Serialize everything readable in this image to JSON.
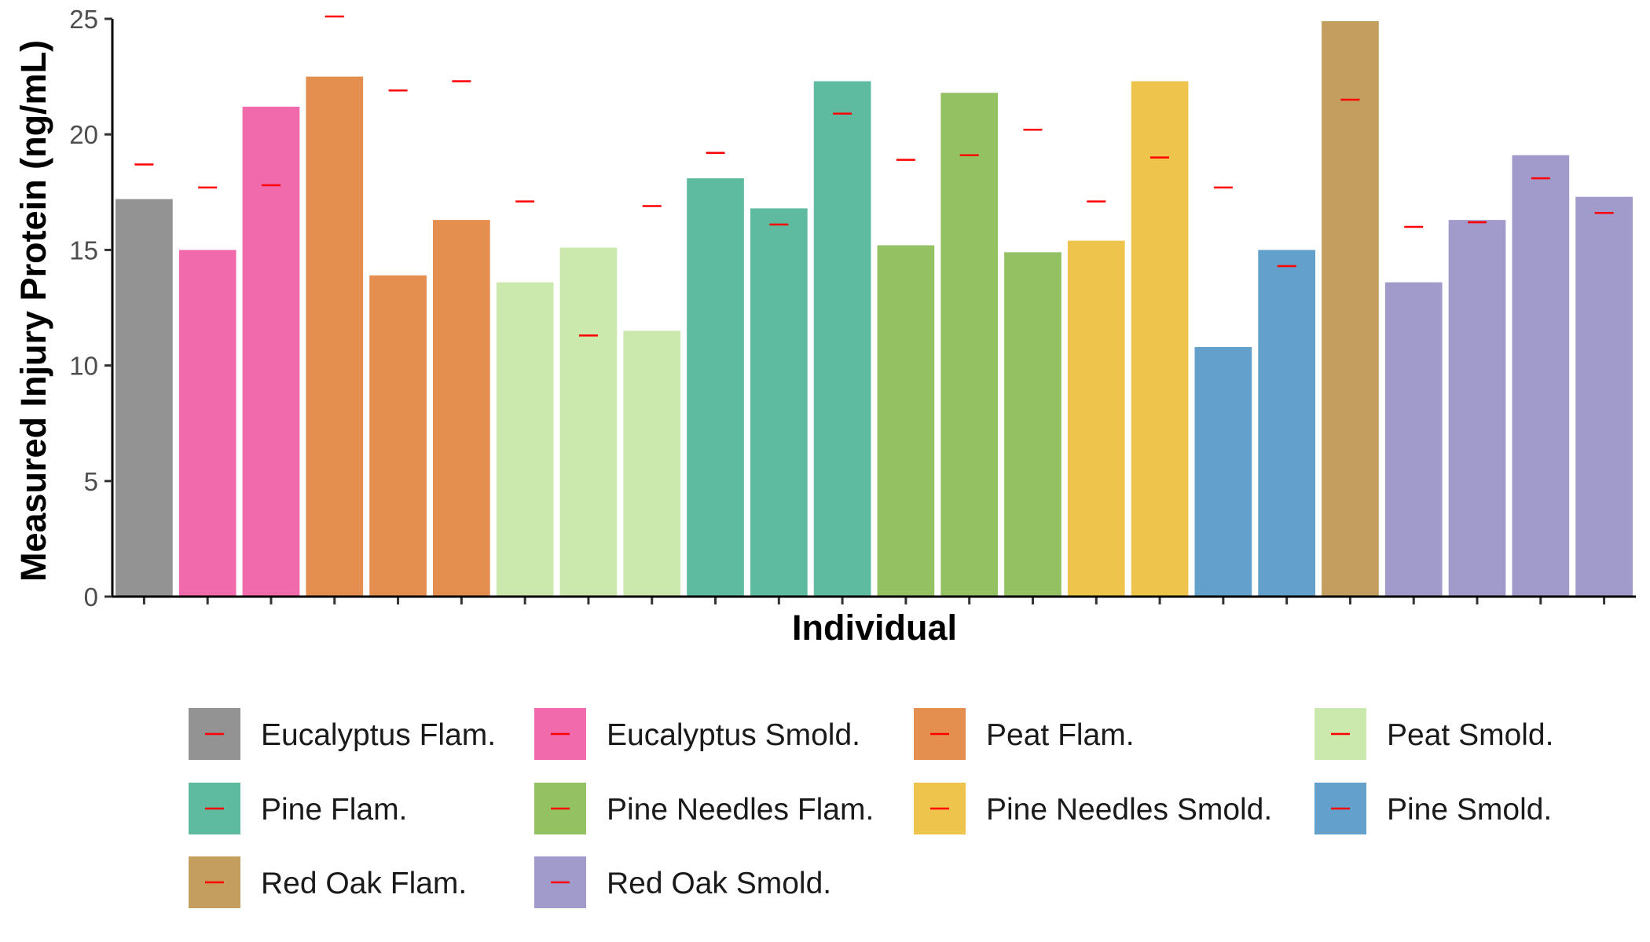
{
  "chart_data": {
    "type": "bar",
    "xlabel": "Individual",
    "ylabel": "Measured Injury Protein (ng/mL)",
    "ylim": [
      0,
      25
    ],
    "yticks": [
      "0",
      "5",
      "10",
      "15",
      "20",
      "25"
    ],
    "x_tick_labels": "none",
    "grid": false,
    "legend_position": "bottom",
    "marker_color": "#ff0000",
    "groups": [
      {
        "name": "Eucalyptus Flam.",
        "color": "#939393"
      },
      {
        "name": "Eucalyptus Smold.",
        "color": "#f06aac"
      },
      {
        "name": "Peat Flam.",
        "color": "#e48f4f"
      },
      {
        "name": "Peat Smold.",
        "color": "#cce9ad"
      },
      {
        "name": "Pine Flam.",
        "color": "#5fbba0"
      },
      {
        "name": "Pine Needles Flam.",
        "color": "#94c262"
      },
      {
        "name": "Pine Needles Smold.",
        "color": "#efc44d"
      },
      {
        "name": "Pine Smold.",
        "color": "#63a0cb"
      },
      {
        "name": "Red Oak Flam.",
        "color": "#c39e5f"
      },
      {
        "name": "Red Oak Smold.",
        "color": "#a09bcb"
      }
    ],
    "bars": [
      {
        "group": 0,
        "value": 17.2,
        "marker": 18.7
      },
      {
        "group": 1,
        "value": 15.0,
        "marker": 17.7
      },
      {
        "group": 1,
        "value": 21.2,
        "marker": 17.8
      },
      {
        "group": 2,
        "value": 22.5,
        "marker": 25.1
      },
      {
        "group": 2,
        "value": 13.9,
        "marker": 21.9
      },
      {
        "group": 2,
        "value": 16.3,
        "marker": 22.3
      },
      {
        "group": 3,
        "value": 13.6,
        "marker": 17.1
      },
      {
        "group": 3,
        "value": 15.1,
        "marker": 11.3
      },
      {
        "group": 3,
        "value": 11.5,
        "marker": 16.9
      },
      {
        "group": 4,
        "value": 18.1,
        "marker": 19.2
      },
      {
        "group": 4,
        "value": 16.8,
        "marker": 16.1
      },
      {
        "group": 4,
        "value": 22.3,
        "marker": 20.9
      },
      {
        "group": 5,
        "value": 15.2,
        "marker": 18.9
      },
      {
        "group": 5,
        "value": 21.8,
        "marker": 19.1
      },
      {
        "group": 5,
        "value": 14.9,
        "marker": 20.2
      },
      {
        "group": 6,
        "value": 15.4,
        "marker": 17.1
      },
      {
        "group": 6,
        "value": 22.3,
        "marker": 19.0
      },
      {
        "group": 7,
        "value": 10.8,
        "marker": 17.7
      },
      {
        "group": 7,
        "value": 15.0,
        "marker": 14.3
      },
      {
        "group": 8,
        "value": 24.9,
        "marker": 21.5
      },
      {
        "group": 9,
        "value": 13.6,
        "marker": 16.0
      },
      {
        "group": 9,
        "value": 16.3,
        "marker": 16.2
      },
      {
        "group": 9,
        "value": 19.1,
        "marker": 18.1
      },
      {
        "group": 9,
        "value": 17.3,
        "marker": 16.6
      }
    ]
  }
}
